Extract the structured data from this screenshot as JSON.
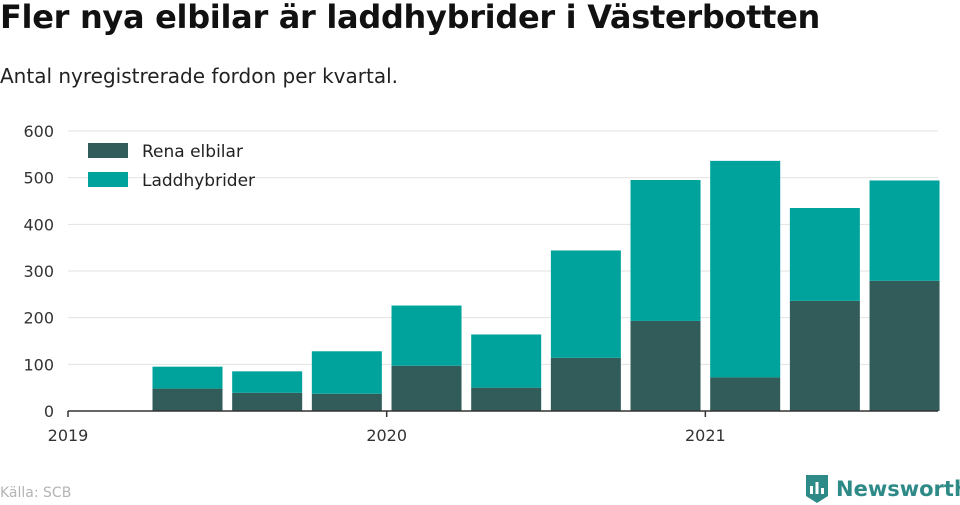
{
  "title": "Fler nya elbilar är laddhybrider i Västerbotten",
  "subtitle": "Antal nyregistrerade fordon per kvartal.",
  "source": "Källa: SCB",
  "brand": {
    "name": "Newsworthy",
    "icon": "newsworthy-logo-icon",
    "color": "#2e8a86"
  },
  "chart_data": {
    "type": "bar",
    "stacked": true,
    "x": [
      "2019-Q2",
      "2019-Q3",
      "2019-Q4",
      "2020-Q1",
      "2020-Q2",
      "2020-Q3",
      "2020-Q4",
      "2021-Q1",
      "2021-Q2",
      "2021-Q3"
    ],
    "x_ticks": [
      "2019",
      "2020",
      "2021"
    ],
    "series": [
      {
        "name": "Rena elbilar",
        "color": "#315c5a",
        "values": [
          48,
          39,
          37,
          97,
          50,
          114,
          193,
          72,
          236,
          279
        ]
      },
      {
        "name": "Laddhybrider",
        "color": "#00a39b",
        "values": [
          47,
          46,
          91,
          129,
          114,
          230,
          302,
          464,
          199,
          215
        ]
      }
    ],
    "y_ticks": [
      0,
      100,
      200,
      300,
      400,
      500,
      600
    ],
    "ylim": [
      0,
      600
    ],
    "grid": true,
    "legend": "top-left"
  }
}
